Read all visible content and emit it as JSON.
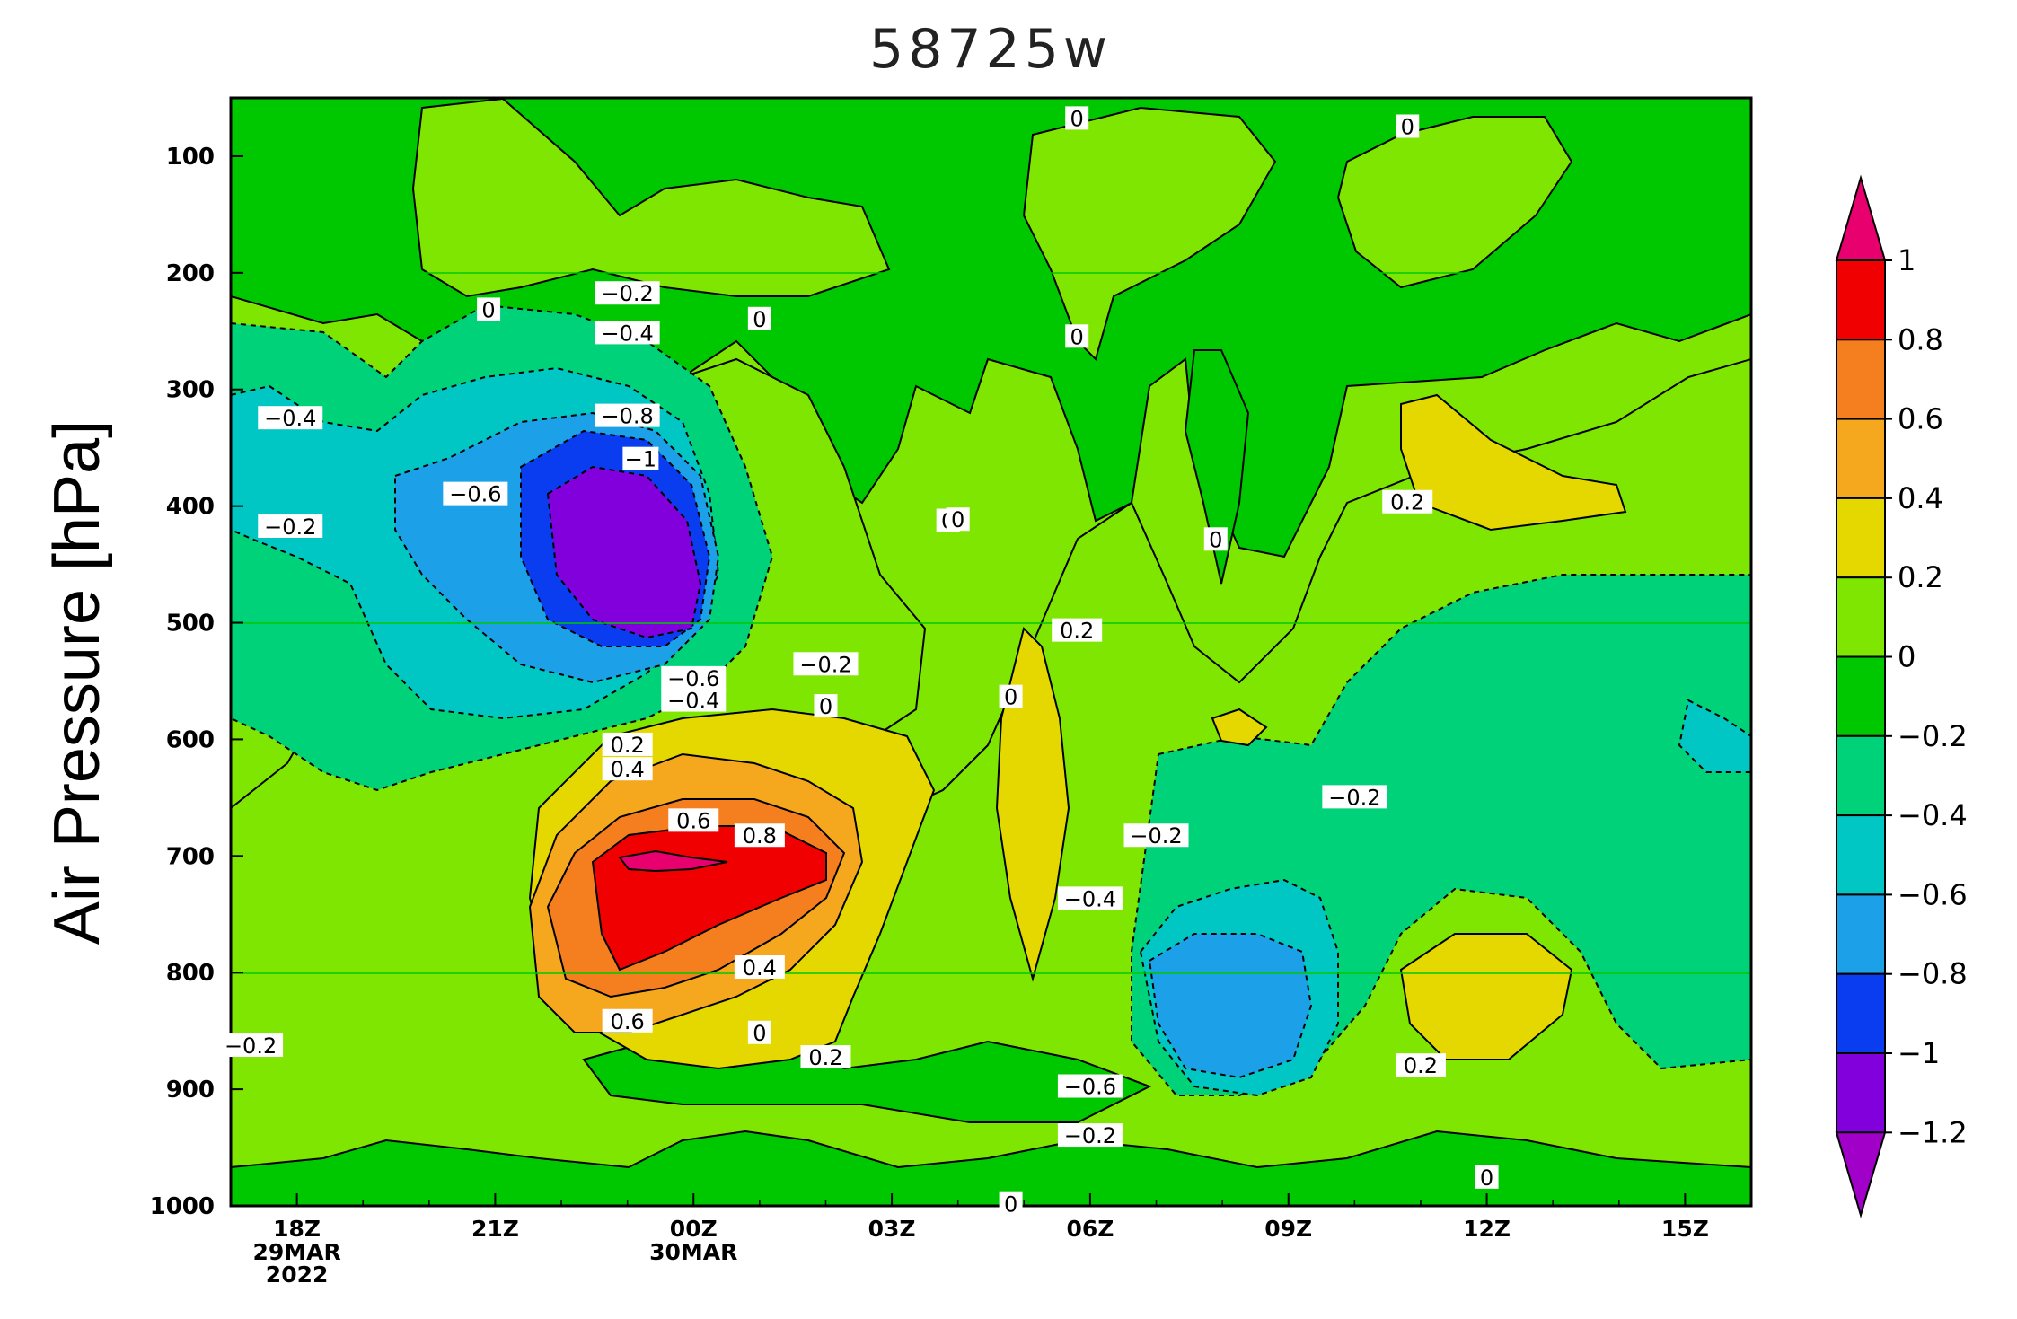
{
  "chart_data": {
    "type": "heatmap",
    "title": "58725w",
    "xlabel": "",
    "ylabel": "Air Pressure [hPa]",
    "x_ticks": [
      "18Z",
      "21Z",
      "00Z",
      "03Z",
      "06Z",
      "09Z",
      "12Z",
      "15Z"
    ],
    "x_tick_hours": [
      0,
      3,
      6,
      9,
      12,
      15,
      18,
      21
    ],
    "x_sublabels": [
      {
        "hour": 0,
        "lines": [
          "29MAR",
          "2022"
        ]
      },
      {
        "hour": 6,
        "lines": [
          "30MAR"
        ]
      }
    ],
    "xlim": [
      -1,
      22
    ],
    "y_ticks": [
      100,
      200,
      300,
      400,
      500,
      600,
      700,
      800,
      900,
      1000
    ],
    "ylim": [
      1000,
      50
    ],
    "colorbar": {
      "levels": [
        1,
        0.8,
        0.6,
        0.4,
        0.2,
        0,
        -0.2,
        -0.4,
        -0.6,
        -0.8,
        -1,
        -1.2
      ],
      "level_labels": [
        "1",
        "0.8",
        "0.6",
        "0.4",
        "0.2",
        "0",
        "−0.2",
        "−0.4",
        "−0.6",
        "−0.8",
        "−1",
        "−1.2"
      ],
      "colors": [
        "#e8006e",
        "#f00000",
        "#f57f1e",
        "#f5a81e",
        "#e5d800",
        "#7ee600",
        "#00c800",
        "#00d27a",
        "#00c6c4",
        "#1ca0e8",
        "#0a3cf0",
        "#8200dc",
        "#a000c8"
      ]
    },
    "contour_labels": [
      {
        "text": "0",
        "x": 11.8,
        "y": 68
      },
      {
        "text": "0",
        "x": 16.8,
        "y": 75
      },
      {
        "text": "0",
        "x": 2.9,
        "y": 232
      },
      {
        "text": "−0.2",
        "x": 5.0,
        "y": 218
      },
      {
        "text": "−0.4",
        "x": 5.0,
        "y": 252
      },
      {
        "text": "0",
        "x": 7.0,
        "y": 240
      },
      {
        "text": "0",
        "x": 11.8,
        "y": 255
      },
      {
        "text": "−0.4",
        "x": -0.1,
        "y": 325
      },
      {
        "text": "−0.8",
        "x": 5.0,
        "y": 323
      },
      {
        "text": "−1",
        "x": 5.2,
        "y": 360
      },
      {
        "text": "−0.6",
        "x": 2.7,
        "y": 390
      },
      {
        "text": "−0.2",
        "x": -0.1,
        "y": 418
      },
      {
        "text": "0",
        "x": 9.85,
        "y": 413
      },
      {
        "text": "0",
        "x": 10.0,
        "y": 412
      },
      {
        "text": "0.2",
        "x": 16.8,
        "y": 397
      },
      {
        "text": "0",
        "x": 13.9,
        "y": 429
      },
      {
        "text": "0.2",
        "x": 11.8,
        "y": 507
      },
      {
        "text": "−0.6",
        "x": 6.0,
        "y": 548
      },
      {
        "text": "−0.4",
        "x": 6.0,
        "y": 567
      },
      {
        "text": "−0.2",
        "x": 8.0,
        "y": 536
      },
      {
        "text": "0",
        "x": 8.0,
        "y": 572
      },
      {
        "text": "0",
        "x": 10.8,
        "y": 564
      },
      {
        "text": "0.2",
        "x": 5.0,
        "y": 605
      },
      {
        "text": "0.4",
        "x": 5.0,
        "y": 626
      },
      {
        "text": "0.6",
        "x": 6.0,
        "y": 670
      },
      {
        "text": "0.8",
        "x": 7.0,
        "y": 683
      },
      {
        "text": "−0.2",
        "x": 13.0,
        "y": 683
      },
      {
        "text": "−0.2",
        "x": 16.0,
        "y": 650
      },
      {
        "text": "−0.4",
        "x": 12.0,
        "y": 737
      },
      {
        "text": "0.4",
        "x": 7.0,
        "y": 796
      },
      {
        "text": "0.6",
        "x": 5.0,
        "y": 842
      },
      {
        "text": "−0.2",
        "x": -0.7,
        "y": 863
      },
      {
        "text": "0",
        "x": 7.0,
        "y": 852
      },
      {
        "text": "0.2",
        "x": 8.0,
        "y": 873
      },
      {
        "text": "−0.6",
        "x": 12.0,
        "y": 898
      },
      {
        "text": "0.2",
        "x": 17.0,
        "y": 880
      },
      {
        "text": "0",
        "x": 18.0,
        "y": 976
      },
      {
        "text": "−0.2",
        "x": 12.0,
        "y": 940
      },
      {
        "text": "0",
        "x": 10.8,
        "y": 999
      }
    ]
  }
}
